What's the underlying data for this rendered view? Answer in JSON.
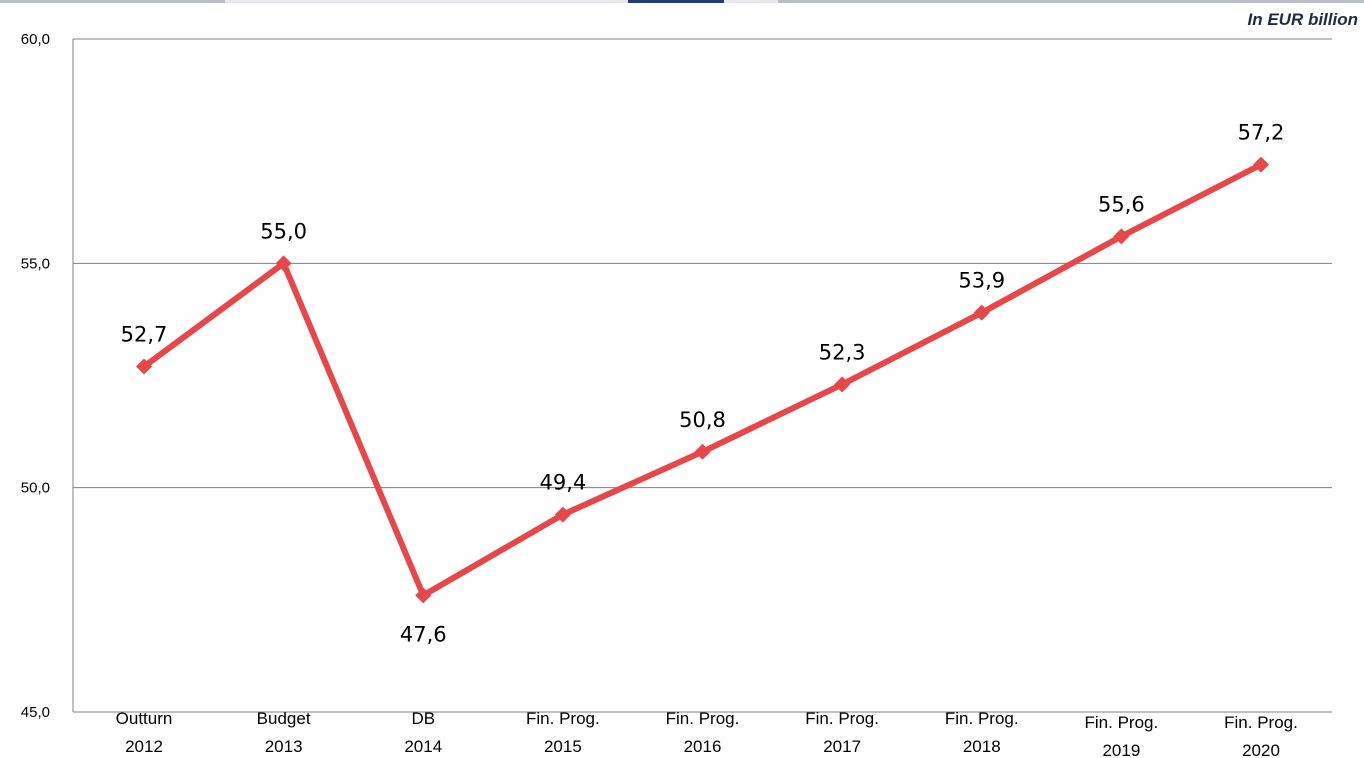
{
  "chart_data": {
    "type": "line",
    "unit_note": "In EUR billion",
    "categories": [
      [
        "Outturn",
        "2012"
      ],
      [
        "Budget",
        "2013"
      ],
      [
        "DB",
        "2014"
      ],
      [
        "Fin. Prog.",
        "2015"
      ],
      [
        "Fin. Prog.",
        "2016"
      ],
      [
        "Fin. Prog.",
        "2017"
      ],
      [
        "Fin. Prog.",
        "2018"
      ],
      [
        "Fin. Prog.",
        "2019"
      ],
      [
        "Fin. Prog.",
        "2020"
      ]
    ],
    "series": [
      {
        "values": [
          52.7,
          55.0,
          47.6,
          49.4,
          50.8,
          52.3,
          53.9,
          55.6,
          57.2
        ],
        "labels": [
          "52,7",
          "55,0",
          "47,6",
          "49,4",
          "50,8",
          "52,3",
          "53,9",
          "55,6",
          "57,2"
        ],
        "color": "#e8474a"
      }
    ],
    "ylim": [
      45.0,
      60.0
    ],
    "yticks": [
      45.0,
      50.0,
      55.0,
      60.0
    ],
    "ytick_labels": [
      "45,0",
      "50,0",
      "55,0",
      "60,0"
    ],
    "grid": true,
    "gridline_color": "#808080"
  },
  "top_strip_colors": [
    "#b9bdc7",
    "#e6e8ec",
    "#1f3f7a"
  ]
}
